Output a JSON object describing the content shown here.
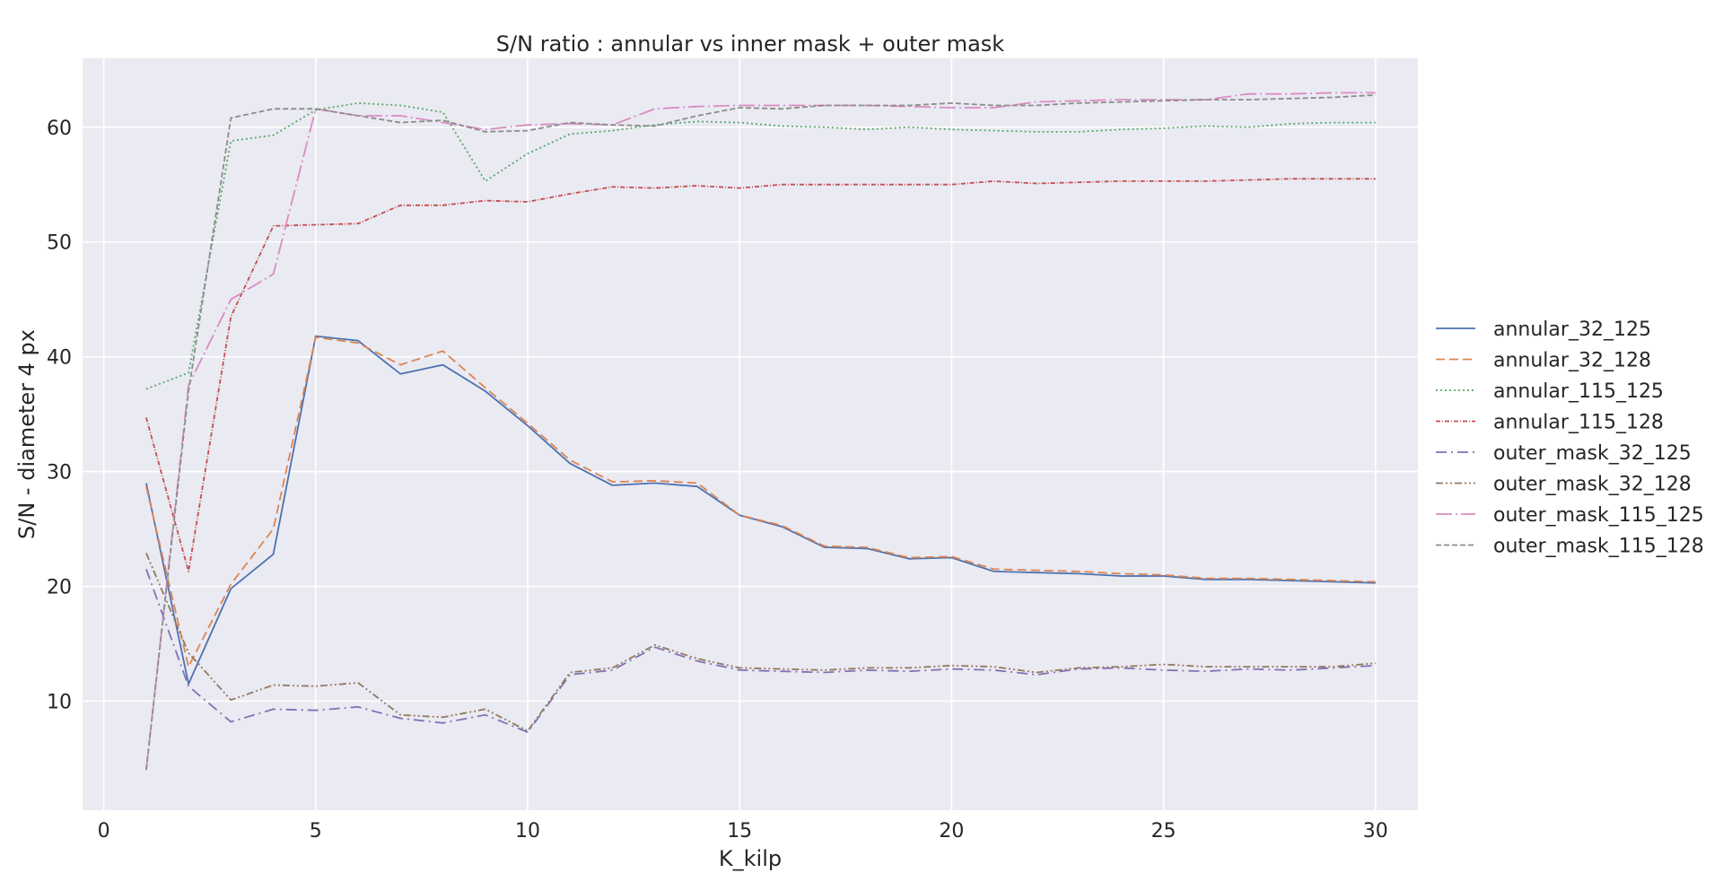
{
  "chart_data": {
    "type": "line",
    "title": "S/N ratio : annular vs inner mask + outer mask",
    "xlabel": "K_kilp",
    "ylabel": "S/N - diameter 4 px",
    "xlim": [
      -0.5,
      31
    ],
    "ylim": [
      0.5,
      66
    ],
    "xticks": [
      0,
      5,
      10,
      15,
      20,
      25,
      30
    ],
    "yticks": [
      10,
      20,
      30,
      40,
      50,
      60
    ],
    "grid": true,
    "legend_position": "right",
    "x": [
      1,
      2,
      3,
      4,
      5,
      6,
      7,
      8,
      9,
      10,
      11,
      12,
      13,
      14,
      15,
      16,
      17,
      18,
      19,
      20,
      21,
      22,
      23,
      24,
      25,
      26,
      27,
      28,
      29,
      30
    ],
    "series": [
      {
        "name": "annular_32_125",
        "color": "#4c72b0",
        "dash": "",
        "values": [
          29.0,
          11.5,
          19.8,
          22.8,
          41.8,
          41.4,
          38.5,
          39.3,
          37.0,
          34.0,
          30.7,
          28.8,
          29.0,
          28.7,
          26.2,
          25.2,
          23.4,
          23.3,
          22.4,
          22.5,
          21.3,
          21.2,
          21.1,
          20.9,
          20.9,
          20.6,
          20.6,
          20.5,
          20.4,
          20.3
        ]
      },
      {
        "name": "annular_32_128",
        "color": "#dd8452",
        "dash": "10,5",
        "values": [
          28.7,
          13.0,
          20.2,
          25.0,
          41.7,
          41.2,
          39.3,
          40.5,
          37.3,
          34.2,
          31.0,
          29.1,
          29.2,
          29.0,
          26.2,
          25.3,
          23.5,
          23.4,
          22.5,
          22.6,
          21.5,
          21.4,
          21.3,
          21.1,
          21.0,
          20.7,
          20.7,
          20.6,
          20.5,
          20.4
        ]
      },
      {
        "name": "annular_115_125",
        "color": "#55a868",
        "dash": "2,3",
        "values": [
          37.2,
          38.6,
          58.8,
          59.3,
          61.5,
          62.1,
          61.9,
          61.3,
          55.3,
          57.7,
          59.4,
          59.7,
          60.2,
          60.5,
          60.4,
          60.1,
          60.0,
          59.8,
          60.0,
          59.8,
          59.7,
          59.6,
          59.6,
          59.8,
          59.9,
          60.1,
          60.0,
          60.3,
          60.4,
          60.4
        ]
      },
      {
        "name": "annular_115_128",
        "color": "#c44e52",
        "dash": "5,2,1,2",
        "values": [
          34.7,
          21.3,
          43.5,
          51.4,
          51.5,
          51.6,
          53.2,
          53.2,
          53.6,
          53.5,
          54.2,
          54.8,
          54.7,
          54.9,
          54.7,
          55.0,
          55.0,
          55.0,
          55.0,
          55.0,
          55.3,
          55.1,
          55.2,
          55.3,
          55.3,
          55.3,
          55.4,
          55.5,
          55.5,
          55.5
        ]
      },
      {
        "name": "outer_mask_32_125",
        "color": "#8172b3",
        "dash": "12,5,2,5",
        "values": [
          21.5,
          11.3,
          8.2,
          9.3,
          9.2,
          9.5,
          8.5,
          8.1,
          8.8,
          7.3,
          12.3,
          12.7,
          14.7,
          13.5,
          12.7,
          12.6,
          12.5,
          12.7,
          12.6,
          12.8,
          12.7,
          12.3,
          12.8,
          12.9,
          12.7,
          12.6,
          12.8,
          12.7,
          12.9,
          13.1
        ]
      },
      {
        "name": "outer_mask_32_128",
        "color": "#937860",
        "dash": "8,3,2,3,2,3",
        "values": [
          22.9,
          14.2,
          10.1,
          11.4,
          11.3,
          11.6,
          8.8,
          8.6,
          9.3,
          7.4,
          12.5,
          12.9,
          14.9,
          13.7,
          12.9,
          12.8,
          12.7,
          12.9,
          12.9,
          13.1,
          13.0,
          12.5,
          12.9,
          13.0,
          13.2,
          13.0,
          13.0,
          13.0,
          13.0,
          13.3
        ]
      },
      {
        "name": "outer_mask_115_125",
        "color": "#da8bc3",
        "dash": "18,4,2,4",
        "values": [
          4.0,
          37.5,
          45.0,
          47.2,
          61.6,
          61.0,
          61.0,
          60.4,
          59.8,
          60.2,
          60.3,
          60.2,
          61.6,
          61.8,
          61.9,
          61.9,
          61.9,
          61.9,
          61.8,
          61.7,
          61.7,
          62.2,
          62.3,
          62.4,
          62.4,
          62.4,
          62.9,
          62.9,
          63.0,
          63.0
        ]
      },
      {
        "name": "outer_mask_115_128",
        "color": "#8c8c8c",
        "dash": "6,3",
        "values": [
          4.0,
          37.0,
          60.8,
          61.6,
          61.6,
          61.0,
          60.4,
          60.6,
          59.6,
          59.7,
          60.4,
          60.2,
          60.1,
          61.0,
          61.7,
          61.6,
          61.9,
          61.9,
          61.9,
          62.1,
          61.9,
          61.9,
          62.1,
          62.2,
          62.3,
          62.4,
          62.4,
          62.5,
          62.6,
          62.8
        ]
      }
    ]
  }
}
